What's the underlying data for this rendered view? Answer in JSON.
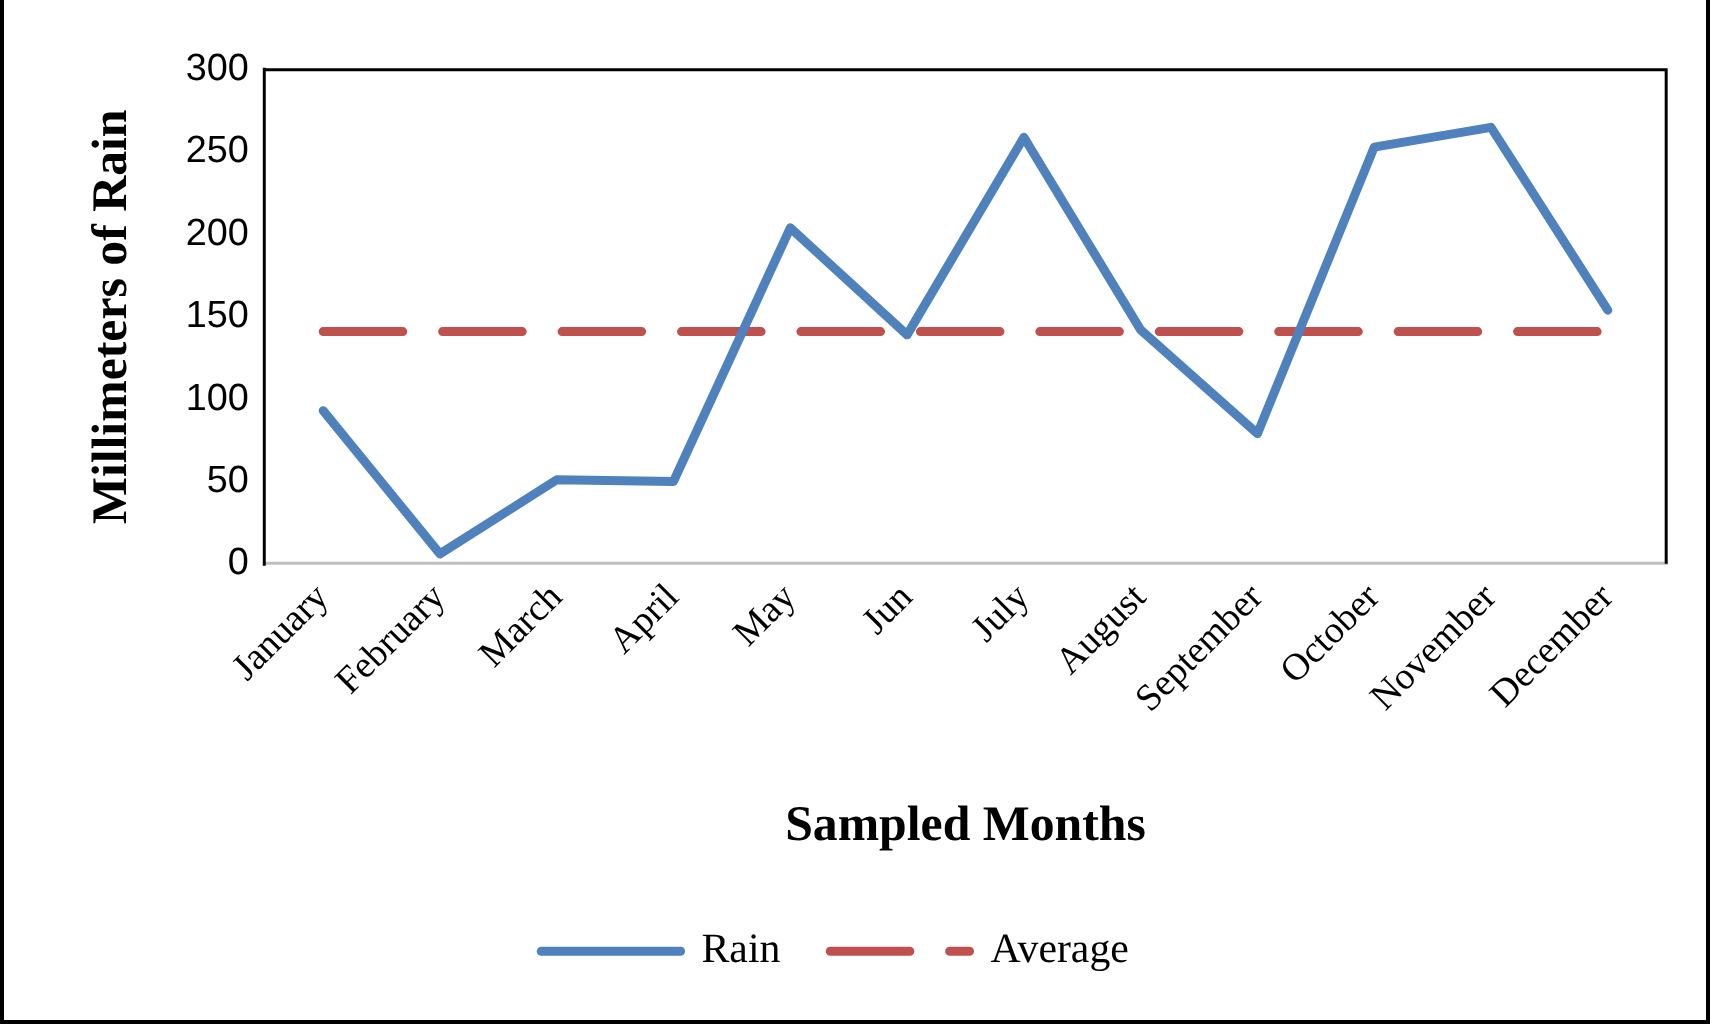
{
  "chart_data": {
    "type": "line",
    "xlabel": "Sampled Months",
    "ylabel": "Millimeters of Rain",
    "categories": [
      "January",
      "February",
      "March",
      "April",
      "May",
      "Jun",
      "July",
      "August",
      "September",
      "October",
      "November",
      "December"
    ],
    "series": [
      {
        "name": "Rain",
        "color": "#4f81bd",
        "values": [
          93,
          6,
          51,
          50,
          204,
          139,
          259,
          142,
          79,
          253,
          265,
          154
        ]
      },
      {
        "name": "Average",
        "color": "#c0504d",
        "line_style": "dashed",
        "values": [
          141,
          141,
          141,
          141,
          141,
          141,
          141,
          141,
          141,
          141,
          141,
          141
        ]
      }
    ],
    "ylim": [
      0,
      300
    ],
    "yticks": [
      0,
      50,
      100,
      150,
      200,
      250,
      300
    ],
    "legend": "bottom",
    "marker": "none",
    "line_style": "solid"
  }
}
